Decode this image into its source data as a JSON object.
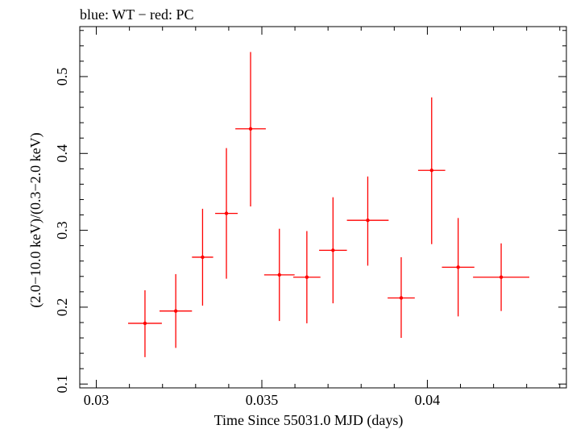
{
  "chart_data": {
    "type": "scatter",
    "title": "blue: WT − red: PC",
    "xlabel": "Time Since 55031.0 MJD (days)",
    "ylabel": "(2.0−10.0 keV)/(0.3−2.0 keV)",
    "xlim": [
      0.0295,
      0.0442
    ],
    "ylim": [
      0.095,
      0.565
    ],
    "x_ticks": [
      {
        "value": 0.03,
        "label": "0.03"
      },
      {
        "value": 0.035,
        "label": "0.035"
      },
      {
        "value": 0.04,
        "label": "0.04"
      }
    ],
    "y_ticks": [
      {
        "value": 0.1,
        "label": "0.1"
      },
      {
        "value": 0.2,
        "label": "0.2"
      },
      {
        "value": 0.3,
        "label": "0.3"
      },
      {
        "value": 0.4,
        "label": "0.4"
      },
      {
        "value": 0.5,
        "label": "0.5"
      }
    ],
    "series": [
      {
        "color": "#ff0000",
        "points": [
          {
            "x": 0.03147,
            "xerr": 0.00051,
            "y": 0.179,
            "ylo": 0.135,
            "yhi": 0.222
          },
          {
            "x": 0.0324,
            "xerr": 0.00049,
            "y": 0.195,
            "ylo": 0.147,
            "yhi": 0.243
          },
          {
            "x": 0.03321,
            "xerr": 0.00032,
            "y": 0.265,
            "ylo": 0.202,
            "yhi": 0.328
          },
          {
            "x": 0.03393,
            "xerr": 0.00034,
            "y": 0.322,
            "ylo": 0.237,
            "yhi": 0.407
          },
          {
            "x": 0.03466,
            "xerr": 0.00046,
            "y": 0.432,
            "ylo": 0.331,
            "yhi": 0.532
          },
          {
            "x": 0.03553,
            "xerr": 0.00046,
            "y": 0.242,
            "ylo": 0.182,
            "yhi": 0.302
          },
          {
            "x": 0.03636,
            "xerr": 0.00041,
            "y": 0.239,
            "ylo": 0.179,
            "yhi": 0.299
          },
          {
            "x": 0.03715,
            "xerr": 0.00042,
            "y": 0.274,
            "ylo": 0.205,
            "yhi": 0.343
          },
          {
            "x": 0.0382,
            "xerr": 0.00063,
            "y": 0.313,
            "ylo": 0.254,
            "yhi": 0.37
          },
          {
            "x": 0.03921,
            "xerr": 0.00041,
            "y": 0.212,
            "ylo": 0.16,
            "yhi": 0.265
          },
          {
            "x": 0.04013,
            "xerr": 0.00041,
            "y": 0.378,
            "ylo": 0.282,
            "yhi": 0.473
          },
          {
            "x": 0.04093,
            "xerr": 0.00049,
            "y": 0.252,
            "ylo": 0.188,
            "yhi": 0.316
          },
          {
            "x": 0.04223,
            "xerr": 0.00085,
            "y": 0.239,
            "ylo": 0.195,
            "yhi": 0.283
          }
        ]
      }
    ]
  }
}
